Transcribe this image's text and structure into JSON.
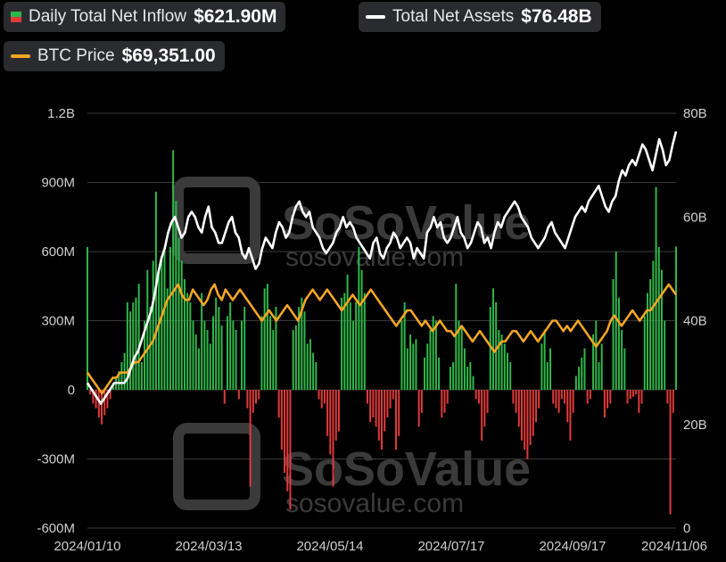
{
  "legend": {
    "inflow": {
      "label": "Daily Total Net Inflow",
      "value": "$621.90M",
      "colors": [
        "#2eb84a",
        "#e03a3a"
      ]
    },
    "assets": {
      "label": "Total Net Assets",
      "value": "$76.48B",
      "color": "#ffffff"
    },
    "btc": {
      "label": "BTC Price",
      "value": "$69,351.00",
      "color": "#f5a623"
    }
  },
  "watermark": {
    "brand": "SoSoValue",
    "url": "sosovalue.com"
  },
  "chart_data": {
    "type": "bar+line",
    "x_range": [
      "2024-01-10",
      "2024-11-06"
    ],
    "x_ticks": [
      "2024/01/10",
      "2024/03/13",
      "2024/05/14",
      "2024/07/17",
      "2024/09/17",
      "2024/11/06"
    ],
    "y_left": {
      "ticks": [
        "1.2B",
        "900M",
        "600M",
        "300M",
        "0",
        "-300M",
        "-600M"
      ],
      "ylim_millions": [
        -600,
        1200
      ]
    },
    "y_right": {
      "ticks": [
        "80B",
        "60B",
        "40B",
        "20B",
        "0"
      ],
      "ylim_billions": [
        0,
        80
      ]
    },
    "grid": true,
    "colors": {
      "positive": "#2eb84a",
      "negative": "#e03a3a",
      "assets": "#ffffff",
      "btc": "#f5a623",
      "grid": "#3a3a3a"
    },
    "series": [
      {
        "name": "Daily Total Net Inflow",
        "kind": "bar",
        "axis": "left",
        "unit": "M USD",
        "values": [
          620,
          -20,
          -60,
          -80,
          -120,
          -150,
          -110,
          -80,
          -40,
          30,
          50,
          80,
          120,
          160,
          380,
          340,
          380,
          400,
          460,
          120,
          300,
          520,
          360,
          560,
          860,
          520,
          580,
          620,
          440,
          620,
          1040,
          820,
          660,
          560,
          480,
          420,
          380,
          300,
          240,
          180,
          420,
          300,
          260,
          200,
          320,
          400,
          360,
          280,
          -60,
          320,
          380,
          300,
          260,
          -40,
          300,
          360,
          -80,
          -420,
          -100,
          -60,
          -40,
          320,
          440,
          460,
          320,
          260,
          360,
          -120,
          -260,
          -360,
          -440,
          -520,
          260,
          280,
          360,
          400,
          340,
          200,
          220,
          160,
          120,
          -40,
          -80,
          -60,
          -200,
          -280,
          -420,
          -220,
          -180,
          400,
          420,
          500,
          380,
          300,
          380,
          620,
          520,
          420,
          -60,
          -140,
          -120,
          -160,
          -220,
          -260,
          -180,
          -120,
          -80,
          -40,
          -260,
          -200,
          300,
          380,
          180,
          240,
          200,
          220,
          -160,
          -100,
          140,
          200,
          260,
          320,
          300,
          140,
          -120,
          -100,
          -60,
          100,
          120,
          460,
          300,
          280,
          180,
          100,
          120,
          60,
          -40,
          -60,
          -220,
          -160,
          -100,
          360,
          440,
          380,
          260,
          240,
          200,
          160,
          120,
          -60,
          -100,
          -160,
          -220,
          -260,
          -300,
          -240,
          -200,
          -140,
          -80,
          200,
          260,
          120,
          180,
          -60,
          -80,
          -100,
          -40,
          -60,
          -140,
          -220,
          -100,
          60,
          100,
          140,
          180,
          -60,
          -40,
          240,
          300,
          120,
          200,
          -120,
          -80,
          -60,
          480,
          600,
          400,
          260,
          180,
          -60,
          -40,
          -30,
          -20,
          -100,
          -60,
          320,
          420,
          480,
          560,
          880,
          620,
          520,
          300,
          -60,
          -540,
          -100,
          622
        ]
      },
      {
        "name": "Total Net Assets",
        "kind": "line",
        "axis": "right",
        "unit": "B USD",
        "values": [
          28,
          27,
          26,
          25,
          24,
          25,
          26,
          27,
          28,
          28,
          28,
          28,
          29,
          31,
          33,
          34,
          36,
          38,
          40,
          42,
          45,
          49,
          52,
          54,
          57,
          59,
          60,
          58,
          56,
          57,
          60,
          61,
          60,
          58,
          57,
          60,
          62,
          58,
          57,
          55,
          55,
          57,
          59,
          60,
          57,
          56,
          53,
          52,
          54,
          52,
          50,
          51,
          54,
          56,
          55,
          54,
          57,
          59,
          58,
          56,
          57,
          60,
          62,
          63,
          61,
          60,
          61,
          58,
          57,
          56,
          54,
          53,
          54,
          55,
          57,
          58,
          60,
          58,
          59,
          58,
          56,
          55,
          54,
          53,
          52,
          55,
          56,
          53,
          52,
          54,
          55,
          57,
          56,
          54,
          55,
          56,
          55,
          52,
          54,
          53,
          52,
          57,
          58,
          60,
          58,
          59,
          56,
          55,
          56,
          58,
          60,
          57,
          56,
          54,
          55,
          57,
          59,
          58,
          55,
          56,
          54,
          57,
          59,
          58,
          60,
          61,
          62,
          63,
          62,
          60,
          59,
          58,
          56,
          55,
          54,
          55,
          56,
          58,
          59,
          57,
          56,
          55,
          54,
          56,
          58,
          60,
          61,
          62,
          61,
          63,
          64,
          65,
          66,
          64,
          62,
          61,
          63,
          64,
          67,
          69,
          68,
          70,
          71,
          70,
          72,
          74,
          73,
          71,
          69,
          72,
          75,
          73,
          70,
          71,
          74,
          76.48
        ]
      },
      {
        "name": "BTC Price",
        "kind": "line",
        "axis": "right",
        "unit": "price (right-axis scale)",
        "values": [
          30,
          29,
          28,
          27,
          26,
          27,
          28,
          29,
          29,
          30,
          30,
          30,
          31,
          32,
          32,
          33,
          34,
          35,
          36,
          38,
          40,
          42,
          44,
          45,
          46,
          47,
          45,
          44,
          44,
          46,
          45,
          44,
          43,
          44,
          46,
          47,
          45,
          44,
          46,
          45,
          44,
          45,
          46,
          45,
          44,
          43,
          42,
          41,
          40,
          41,
          42,
          41,
          40,
          41,
          42,
          43,
          42,
          41,
          40,
          42,
          44,
          45,
          46,
          45,
          44,
          45,
          46,
          45,
          44,
          43,
          42,
          43,
          44,
          45,
          44,
          43,
          44,
          45,
          46,
          45,
          44,
          43,
          42,
          41,
          40,
          39,
          40,
          41,
          42,
          42,
          41,
          40,
          39,
          40,
          39,
          38,
          39,
          40,
          39,
          38,
          38,
          37,
          38,
          39,
          38,
          37,
          36,
          37,
          38,
          37,
          36,
          35,
          34,
          35,
          36,
          36,
          37,
          38,
          38,
          37,
          36,
          37,
          38,
          37,
          36,
          37,
          38,
          39,
          40,
          40,
          39,
          38,
          39,
          38,
          39,
          40,
          39,
          38,
          37,
          36,
          35,
          36,
          37,
          38,
          40,
          41,
          40,
          39,
          40,
          41,
          42,
          41,
          40,
          41,
          42,
          42,
          43,
          44,
          45,
          46,
          47,
          46,
          45
        ]
      }
    ]
  }
}
